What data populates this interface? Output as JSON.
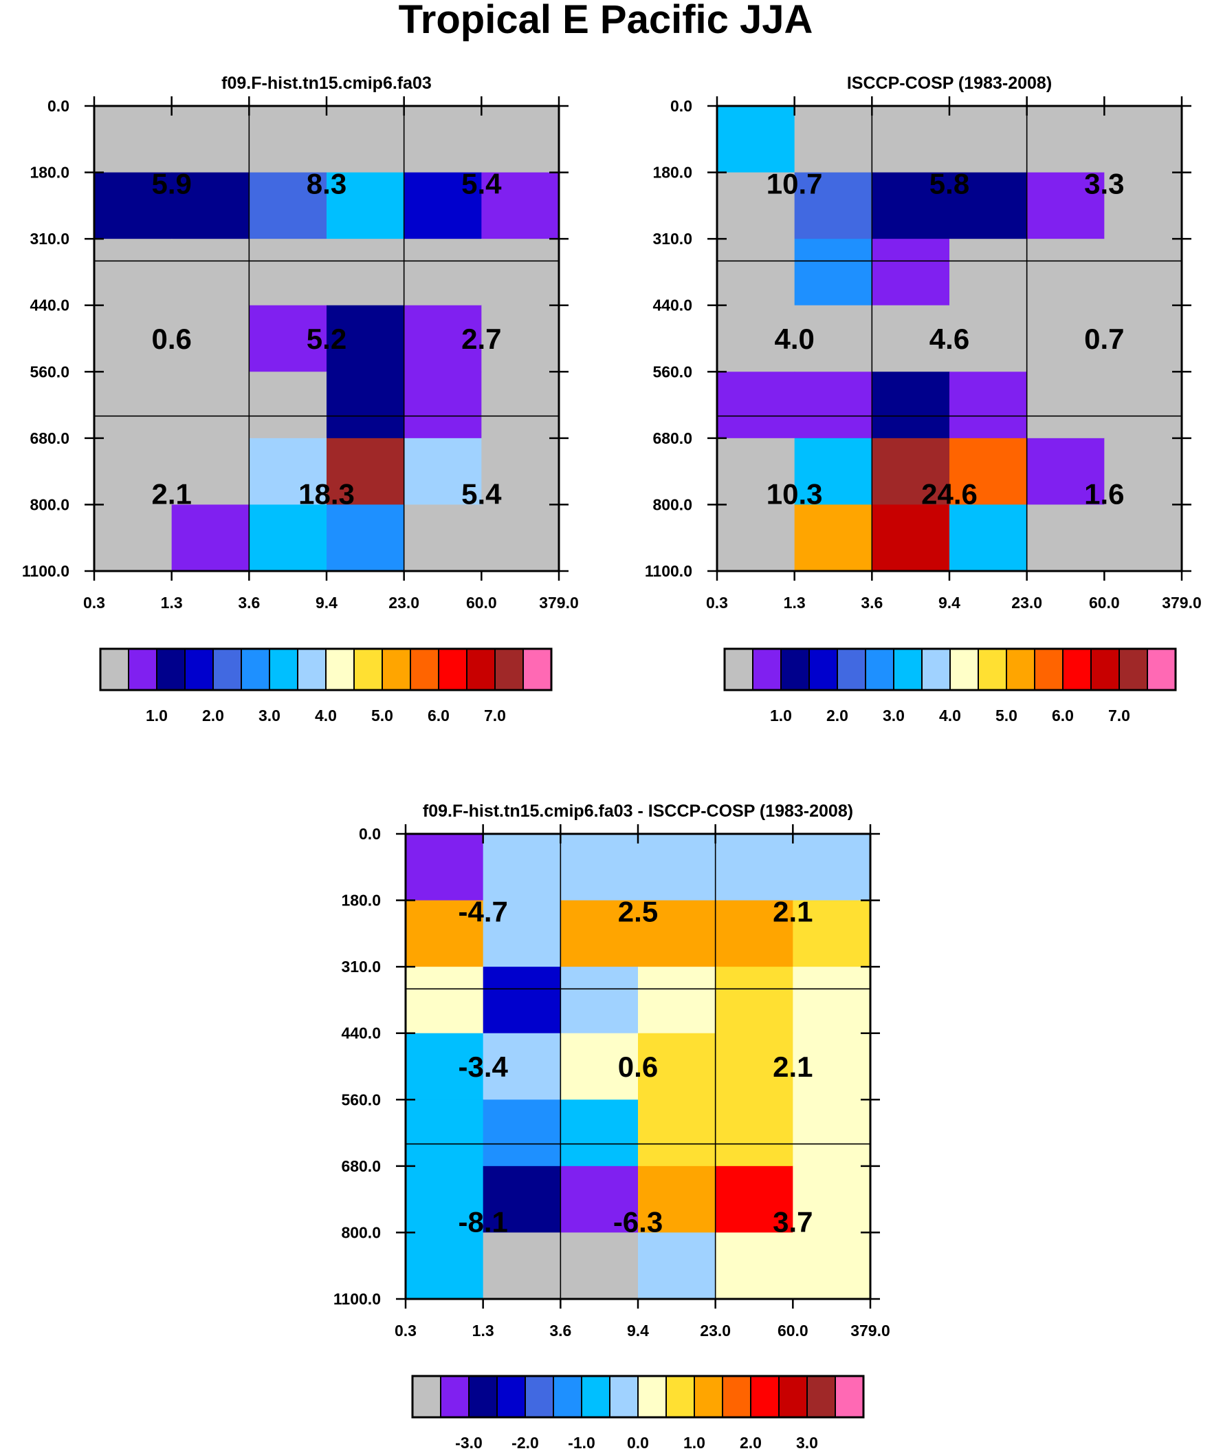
{
  "title": "Tropical E Pacific JJA",
  "chart_data": [
    {
      "type": "heatmap",
      "title": "f09.F-hist.tn15.cmip6.fa03",
      "xticks": [
        "0.3",
        "1.3",
        "3.6",
        "9.4",
        "23.0",
        "60.0",
        "379.0"
      ],
      "yticks": [
        "0.0",
        "180.0",
        "310.0",
        "440.0",
        "560.0",
        "680.0",
        "800.0",
        "1100.0"
      ],
      "cells": [
        [
          0,
          0,
          0,
          0,
          0,
          0
        ],
        [
          2,
          2,
          4,
          6,
          3,
          1
        ],
        [
          0,
          0,
          0,
          0,
          0,
          0
        ],
        [
          0,
          0,
          1,
          2,
          1,
          0
        ],
        [
          0,
          0,
          0,
          2,
          1,
          0
        ],
        [
          0,
          0,
          7,
          14,
          7,
          0
        ],
        [
          0,
          1,
          6,
          5,
          0,
          0
        ]
      ],
      "block_labels": [
        [
          "5.9",
          "8.3",
          "5.4"
        ],
        [
          "0.6",
          "5.2",
          "2.7"
        ],
        [
          "2.1",
          "18.3",
          "5.4"
        ]
      ],
      "colorbar_labels": [
        "1.0",
        "2.0",
        "3.0",
        "4.0",
        "5.0",
        "6.0",
        "7.0"
      ]
    },
    {
      "type": "heatmap",
      "title": "ISCCP-COSP (1983-2008)",
      "xticks": [
        "0.3",
        "1.3",
        "3.6",
        "9.4",
        "23.0",
        "60.0",
        "379.0"
      ],
      "yticks": [
        "0.0",
        "180.0",
        "310.0",
        "440.0",
        "560.0",
        "680.0",
        "800.0",
        "1100.0"
      ],
      "cells": [
        [
          6,
          0,
          0,
          0,
          0,
          0
        ],
        [
          0,
          4,
          2,
          2,
          1,
          0
        ],
        [
          0,
          5,
          1,
          0,
          0,
          0
        ],
        [
          0,
          0,
          0,
          0,
          0,
          0
        ],
        [
          1,
          1,
          2,
          1,
          0,
          0
        ],
        [
          0,
          6,
          14,
          11,
          1,
          0
        ],
        [
          0,
          10,
          13,
          6,
          0,
          0
        ]
      ],
      "block_labels": [
        [
          "10.7",
          "5.8",
          "3.3"
        ],
        [
          "4.0",
          "4.6",
          "0.7"
        ],
        [
          "10.3",
          "24.6",
          "1.6"
        ]
      ],
      "colorbar_labels": [
        "1.0",
        "2.0",
        "3.0",
        "4.0",
        "5.0",
        "6.0",
        "7.0"
      ]
    },
    {
      "type": "heatmap",
      "title": "f09.F-hist.tn15.cmip6.fa03 - ISCCP-COSP (1983-2008)",
      "xticks": [
        "0.3",
        "1.3",
        "3.6",
        "9.4",
        "23.0",
        "60.0",
        "379.0"
      ],
      "yticks": [
        "0.0",
        "180.0",
        "310.0",
        "440.0",
        "560.0",
        "680.0",
        "800.0",
        "1100.0"
      ],
      "cells": [
        [
          1,
          7,
          7,
          7,
          7,
          7
        ],
        [
          10,
          7,
          10,
          10,
          10,
          9
        ],
        [
          8,
          3,
          7,
          8,
          9,
          8
        ],
        [
          6,
          7,
          8,
          9,
          9,
          8
        ],
        [
          6,
          5,
          6,
          9,
          9,
          8
        ],
        [
          6,
          2,
          1,
          10,
          12,
          8
        ],
        [
          6,
          0,
          0,
          7,
          8,
          8
        ]
      ],
      "block_labels": [
        [
          "-4.7",
          "2.5",
          "2.1"
        ],
        [
          "-3.4",
          "0.6",
          "2.1"
        ],
        [
          "-8.1",
          "-6.3",
          "3.7"
        ]
      ],
      "colorbar_labels": [
        "-3.0",
        "-2.0",
        "-1.0",
        "0.0",
        "1.0",
        "2.0",
        "3.0"
      ]
    }
  ],
  "palette": [
    "#c0c0c0",
    "#8020f0",
    "#00008c",
    "#0000cd",
    "#4169e1",
    "#1e90ff",
    "#00bfff",
    "#a0d2ff",
    "#ffffc8",
    "#ffe032",
    "#ffa500",
    "#ff6400",
    "#ff0000",
    "#c80000",
    "#a02828",
    "#ff69b4"
  ]
}
